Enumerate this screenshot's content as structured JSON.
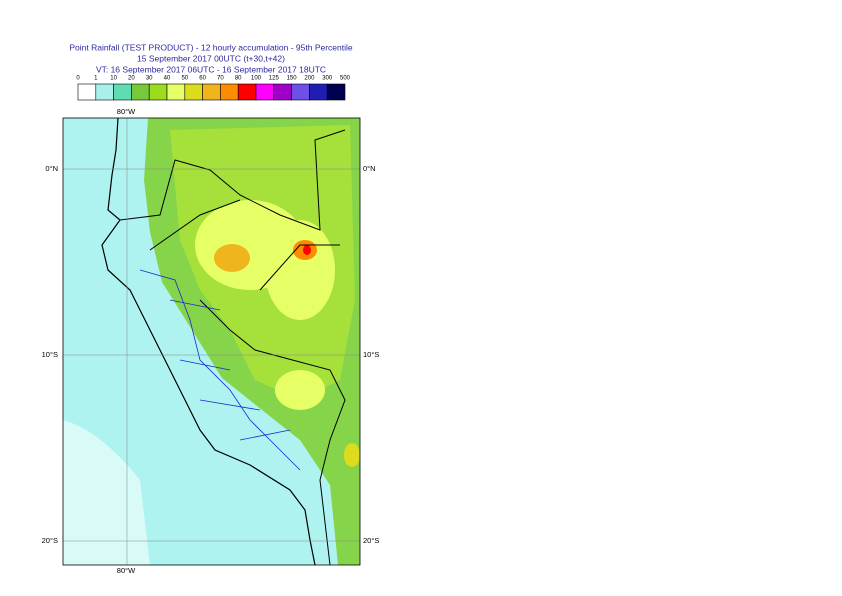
{
  "title": {
    "line1": "Point Rainfall (TEST PRODUCT) - 12 hourly accumulation - 95th Percentile",
    "line2": "15 September 2017 00UTC (t+30,t+42)",
    "line3": "VT: 16 September 2017 06UTC - 16 September 2017 18UTC"
  },
  "legend": {
    "labels": [
      "0",
      "1",
      "10",
      "20",
      "30",
      "40",
      "50",
      "60",
      "70",
      "80",
      "100",
      "125",
      "150",
      "200",
      "300",
      "500"
    ],
    "colors": [
      "#ffffff",
      "#a8f0ec",
      "#5fdcb4",
      "#78c83c",
      "#9cdc1c",
      "#e6ff66",
      "#dcdc1c",
      "#f0b41c",
      "#ff8c00",
      "#ff0000",
      "#ff00ff",
      "#a000c8",
      "#6e50e6",
      "#1e1eb4",
      "#000050"
    ]
  },
  "map": {
    "lon_label": "80°W",
    "lat_labels": [
      "0°N",
      "10°S",
      "20°S"
    ]
  }
}
